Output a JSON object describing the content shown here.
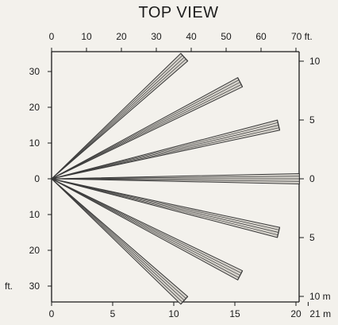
{
  "title": "TOP VIEW",
  "top_axis": {
    "ticks": [
      0,
      10,
      20,
      30,
      40,
      50,
      60,
      70
    ],
    "tick_labels": [
      "0",
      "10",
      "20",
      "30",
      "40",
      "50",
      "60",
      "70"
    ],
    "unit": "ft."
  },
  "bottom_axis": {
    "ticks": [
      0,
      5,
      10,
      15,
      20,
      21
    ],
    "tick_labels": [
      "0",
      "5",
      "10",
      "15",
      "20",
      "21"
    ],
    "unit": "m"
  },
  "left_axis": {
    "ticks": [
      30,
      20,
      10,
      0,
      -10,
      -20,
      -30
    ],
    "tick_labels": [
      "30",
      "20",
      "10",
      "0",
      "10",
      "20",
      "30"
    ],
    "unit": "ft."
  },
  "right_axis": {
    "ticks": [
      10,
      5,
      0,
      -5,
      -10
    ],
    "tick_labels": [
      "10",
      "5",
      "0",
      "5",
      "10"
    ],
    "unit": "m"
  },
  "beams": [
    {
      "end_x_ft": 38,
      "end_y_ft": 34
    },
    {
      "end_x_ft": 54,
      "end_y_ft": 27
    },
    {
      "end_x_ft": 65,
      "end_y_ft": 15
    },
    {
      "end_x_ft": 71,
      "end_y_ft": 0
    },
    {
      "end_x_ft": 65,
      "end_y_ft": -15
    },
    {
      "end_x_ft": 54,
      "end_y_ft": -27
    },
    {
      "end_x_ft": 38,
      "end_y_ft": -34
    }
  ],
  "colors": {
    "ink": "#1a1a1a",
    "beam_stroke": "#3a3a3a",
    "beam_fill": "#d6d3cc",
    "background": "#f3f1ec"
  }
}
